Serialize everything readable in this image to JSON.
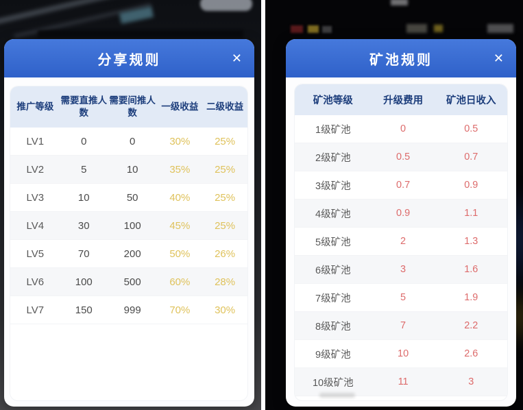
{
  "share_modal": {
    "title": "分享规则",
    "close_glyph": "✕",
    "table": {
      "headers": [
        "推广等级",
        "需要直推人数",
        "需要间推人数",
        "一级收益",
        "二级收益"
      ],
      "rows": [
        {
          "level": "LV1",
          "direct": "0",
          "indirect": "0",
          "l1": "30%",
          "l2": "25%"
        },
        {
          "level": "LV2",
          "direct": "5",
          "indirect": "10",
          "l1": "35%",
          "l2": "25%"
        },
        {
          "level": "LV3",
          "direct": "10",
          "indirect": "50",
          "l1": "40%",
          "l2": "25%"
        },
        {
          "level": "LV4",
          "direct": "30",
          "indirect": "100",
          "l1": "45%",
          "l2": "25%"
        },
        {
          "level": "LV5",
          "direct": "70",
          "indirect": "200",
          "l1": "50%",
          "l2": "26%"
        },
        {
          "level": "LV6",
          "direct": "100",
          "indirect": "500",
          "l1": "60%",
          "l2": "28%"
        },
        {
          "level": "LV7",
          "direct": "150",
          "indirect": "999",
          "l1": "70%",
          "l2": "30%"
        }
      ]
    }
  },
  "pool_modal": {
    "title": "矿池规则",
    "close_glyph": "✕",
    "table": {
      "headers": [
        "矿池等级",
        "升级费用",
        "矿池日收入"
      ],
      "rows": [
        {
          "level": "1级矿池",
          "cost": "0",
          "income": "0.5"
        },
        {
          "level": "2级矿池",
          "cost": "0.5",
          "income": "0.7"
        },
        {
          "level": "3级矿池",
          "cost": "0.7",
          "income": "0.9"
        },
        {
          "level": "4级矿池",
          "cost": "0.9",
          "income": "1.1"
        },
        {
          "level": "5级矿池",
          "cost": "2",
          "income": "1.3"
        },
        {
          "level": "6级矿池",
          "cost": "3",
          "income": "1.6"
        },
        {
          "level": "7级矿池",
          "cost": "5",
          "income": "1.9"
        },
        {
          "level": "8级矿池",
          "cost": "7",
          "income": "2.2"
        },
        {
          "level": "9级矿池",
          "cost": "10",
          "income": "2.6"
        },
        {
          "level": "10级矿池",
          "cost": "11",
          "income": "3"
        }
      ]
    }
  },
  "colors": {
    "header_blue": "#3568d2",
    "table_head_bg": "#e2eaf6",
    "table_head_text": "#1d3e7c",
    "percent_gold": "#dfc25b",
    "value_red": "#dd6b6b"
  }
}
